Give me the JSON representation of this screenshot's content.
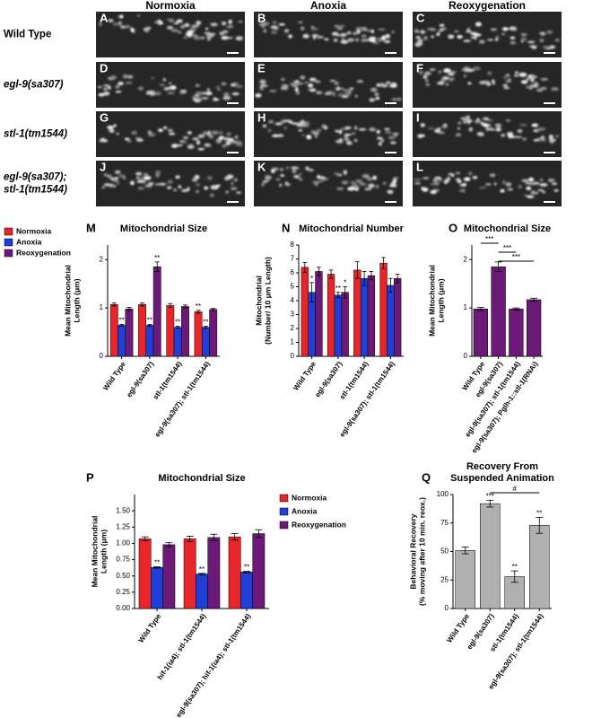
{
  "figure": {
    "columns": [
      "Normoxia",
      "Anoxia",
      "Reoxygenation"
    ],
    "rows": [
      [
        "Wild Type"
      ],
      [
        "egl-9(sa307)"
      ],
      [
        "stl-1(tm1544)"
      ],
      [
        "egl-9(sa307);",
        "stl-1(tm1544)"
      ]
    ],
    "panels": [
      "A",
      "B",
      "C",
      "D",
      "E",
      "F",
      "G",
      "H",
      "I",
      "J",
      "K",
      "L"
    ]
  },
  "chart_data": [
    {
      "type": "bar",
      "panel": "M",
      "title": [
        "Mitochondrial Size"
      ],
      "ylabel": [
        "Mean Mitochondrial",
        "Length (μm)"
      ],
      "categories": [
        "Wild Type",
        "egl-9(sa307)",
        "stl-1(tm1544)",
        "egl-9(sa307); stl-1(tm1544)"
      ],
      "ylim": [
        0,
        2.3
      ],
      "yticks": [
        0,
        1,
        2
      ],
      "legend": "left",
      "series": [
        {
          "name": "Normoxia",
          "color": "#e8262a",
          "values": [
            1.07,
            1.07,
            1.05,
            0.92
          ],
          "errors": [
            0.03,
            0.03,
            0.04,
            0.03
          ],
          "significance": [
            null,
            null,
            null,
            "**"
          ]
        },
        {
          "name": "Anoxia",
          "color": "#1f3fd6",
          "values": [
            0.64,
            0.64,
            0.6,
            0.6
          ],
          "errors": [
            0.02,
            0.02,
            0.02,
            0.02
          ],
          "significance": [
            "**",
            "**",
            "**",
            "**"
          ]
        },
        {
          "name": "Reoxygenation",
          "color": "#6b1a78",
          "values": [
            0.98,
            1.85,
            1.03,
            0.97
          ],
          "errors": [
            0.03,
            0.1,
            0.03,
            0.02
          ],
          "significance": [
            null,
            "**",
            null,
            null
          ]
        }
      ]
    },
    {
      "type": "bar",
      "panel": "N",
      "title": [
        "Mitochondrial Number"
      ],
      "ylabel": [
        "Mitochondrial",
        "(Number/ 10 μm Length)"
      ],
      "categories": [
        "Wild Type",
        "egl-9(sa307)",
        "stl-1(tm1544)",
        "egl-9(sa307); stl-1(tm1544)"
      ],
      "ylim": [
        0,
        8
      ],
      "yticks": [
        0,
        1,
        2,
        3,
        4,
        5,
        6,
        7,
        8
      ],
      "series": [
        {
          "name": "Normoxia",
          "color": "#e8262a",
          "values": [
            6.4,
            5.9,
            6.2,
            6.7
          ],
          "errors": [
            0.35,
            0.3,
            0.6,
            0.4
          ],
          "significance": [
            null,
            null,
            null,
            null
          ]
        },
        {
          "name": "Anoxia",
          "color": "#1f3fd6",
          "values": [
            4.6,
            4.4,
            5.6,
            5.1
          ],
          "errors": [
            0.7,
            0.2,
            0.5,
            0.5
          ],
          "significance": [
            "*",
            "**",
            null,
            null
          ]
        },
        {
          "name": "Reoxygenation",
          "color": "#6b1a78",
          "values": [
            6.1,
            4.6,
            5.8,
            5.6
          ],
          "errors": [
            0.3,
            0.4,
            0.3,
            0.3
          ],
          "significance": [
            null,
            "*",
            null,
            null
          ]
        }
      ]
    },
    {
      "type": "bar",
      "panel": "O",
      "title": [
        "Mitochondrial Size"
      ],
      "ylabel": [
        "Mean Mitochondrial",
        "Length (μm)"
      ],
      "categories": [
        "Wild Type",
        "egl-9(sa307)",
        "egl-9(sa307); stl-1(tm1544)",
        "egl-9(sa307); Pglh-1::stl-1(RNAi)"
      ],
      "ylim": [
        0,
        2.3
      ],
      "yticks": [
        0,
        1,
        2
      ],
      "color": "#6b1a78",
      "values": [
        0.98,
        1.85,
        0.98,
        1.17
      ],
      "errors": [
        0.03,
        0.1,
        0.02,
        0.03
      ],
      "comparisons": [
        {
          "from": "Wild Type",
          "to": "egl-9(sa307)",
          "label": "***"
        },
        {
          "from": "egl-9(sa307)",
          "to": "egl-9(sa307); stl-1(tm1544)",
          "label": "***"
        },
        {
          "from": "egl-9(sa307)",
          "to": "egl-9(sa307); Pglh-1::stl-1(RNAi)",
          "label": "***"
        }
      ]
    },
    {
      "type": "bar",
      "panel": "P",
      "title": [
        "Mitochondrial Size"
      ],
      "ylabel": [
        "Mean Mitochondrial",
        "Length (μm)"
      ],
      "categories": [
        "Wild Type",
        "hif-1(ia4); stl-1(tm1544)",
        "egl-9(sa307); hif-1(ia4); stl-1(tm1544)"
      ],
      "ylim": [
        0,
        1.75
      ],
      "legend": "right",
      "yticks": [
        {
          "value": 0,
          "label": "0.00"
        },
        {
          "value": 0.25,
          "label": "0.25"
        },
        {
          "value": 0.5,
          "label": "0.50"
        },
        {
          "value": 0.75,
          "label": "0.75"
        },
        {
          "value": 1,
          "label": "1.00"
        },
        {
          "value": 1.25,
          "label": "1.25"
        },
        {
          "value": 1.5,
          "label": "1.50"
        }
      ],
      "series": [
        {
          "name": "Normoxia",
          "color": "#e8262a",
          "values": [
            1.07,
            1.07,
            1.1
          ],
          "errors": [
            0.03,
            0.04,
            0.05
          ],
          "significance": [
            null,
            null,
            null
          ]
        },
        {
          "name": "Anoxia",
          "color": "#1f3fd6",
          "values": [
            0.63,
            0.53,
            0.56
          ],
          "errors": [
            0.01,
            0.01,
            0.01
          ],
          "significance": [
            "**",
            "**",
            "**"
          ]
        },
        {
          "name": "Reoxygenation",
          "color": "#6b1a78",
          "values": [
            0.98,
            1.09,
            1.15
          ],
          "errors": [
            0.03,
            0.05,
            0.06
          ],
          "significance": [
            null,
            null,
            null
          ]
        }
      ]
    },
    {
      "type": "bar",
      "panel": "Q",
      "title": [
        "Recovery From",
        "Suspended Animation"
      ],
      "ylabel": [
        "Behavioral Recovery",
        "(% moving after 10 min. reox.)"
      ],
      "categories": [
        "Wild Type",
        "egl-9(sa307)",
        "stl-1(tm1544)",
        "egl-9(sa307); stl-1(tm1544)"
      ],
      "ylim": [
        0,
        100
      ],
      "yticks": [
        0,
        25,
        50,
        75,
        100
      ],
      "color": "#b0b0b0",
      "values": [
        51,
        92,
        28,
        73
      ],
      "errors": [
        3,
        3,
        5,
        7
      ],
      "significance": [
        null,
        "***",
        "**",
        "**"
      ],
      "comparisons": [
        {
          "from": "egl-9(sa307)",
          "to": "egl-9(sa307); stl-1(tm1544)",
          "label": "#"
        }
      ]
    }
  ]
}
